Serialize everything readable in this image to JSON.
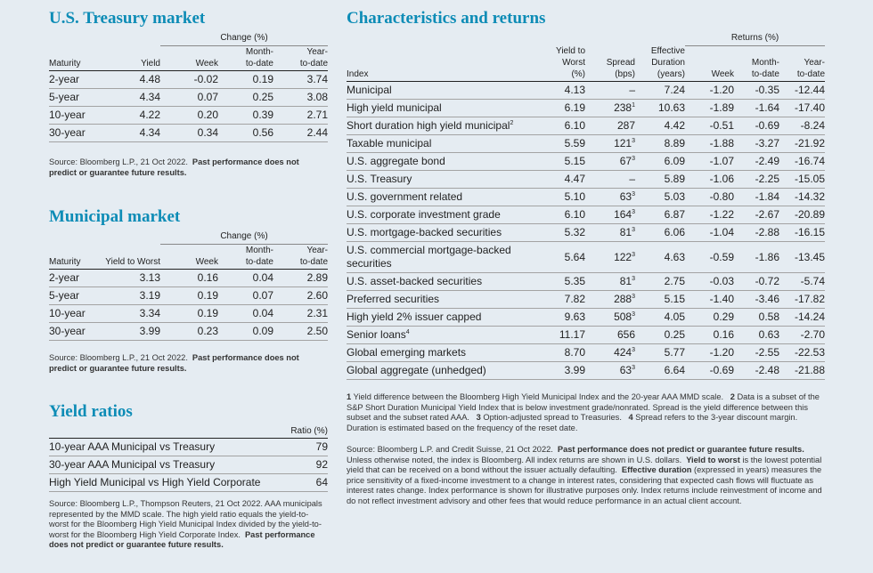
{
  "treasury": {
    "title": "U.S. Treasury market",
    "group_label": "Change (%)",
    "headers": [
      "Maturity",
      "Yield",
      "Week",
      "Month-\nto-date",
      "Year-\nto-date"
    ],
    "rows": [
      [
        "2-year",
        "4.48",
        "-0.02",
        "0.19",
        "3.74"
      ],
      [
        "5-year",
        "4.34",
        "0.07",
        "0.25",
        "3.08"
      ],
      [
        "10-year",
        "4.22",
        "0.20",
        "0.39",
        "2.71"
      ],
      [
        "30-year",
        "4.34",
        "0.34",
        "0.56",
        "2.44"
      ]
    ],
    "source": "Source: Bloomberg L.P., 21 Oct 2022.",
    "disclaimer": "Past performance does not predict or guarantee future results."
  },
  "municipal": {
    "title": "Municipal market",
    "group_label": "Change (%)",
    "headers": [
      "Maturity",
      "Yield to Worst",
      "Week",
      "Month-\nto-date",
      "Year-\nto-date"
    ],
    "rows": [
      [
        "2-year",
        "3.13",
        "0.16",
        "0.04",
        "2.89"
      ],
      [
        "5-year",
        "3.19",
        "0.19",
        "0.07",
        "2.60"
      ],
      [
        "10-year",
        "3.34",
        "0.19",
        "0.04",
        "2.31"
      ],
      [
        "30-year",
        "3.99",
        "0.23",
        "0.09",
        "2.50"
      ]
    ],
    "source": "Source: Bloomberg L.P., 21 Oct 2022.",
    "disclaimer": "Past performance does not predict or guarantee future results."
  },
  "yield_ratios": {
    "title": "Yield ratios",
    "ratio_header": "Ratio (%)",
    "rows": [
      [
        "10-year AAA Municipal vs Treasury",
        "79"
      ],
      [
        "30-year AAA Municipal vs Treasury",
        "92"
      ],
      [
        "High Yield Municipal vs High Yield Corporate",
        "64"
      ]
    ],
    "source": "Source: Bloomberg L.P., Thompson Reuters, 21 Oct 2022. AAA municipals represented by the MMD scale. The high yield ratio equals the yield-to-worst for the Bloomberg High Yield Municipal Index divided by the yield-to-worst for the Bloomberg High Yield Corporate Index.",
    "disclaimer": "Past performance does not predict or guarantee future results."
  },
  "characteristics": {
    "title": "Characteristics and returns",
    "returns_label": "Returns (%)",
    "headers": [
      "Index",
      "Yield to\nWorst\n(%)",
      "Spread\n(bps)",
      "Effective\nDuration\n(years)",
      "Week",
      "Month-\nto-date",
      "Year-\nto-date"
    ],
    "rows": [
      {
        "name": "Municipal",
        "sup": "",
        "ytw": "4.13",
        "spread": "–",
        "ssup": "",
        "dur": "7.24",
        "week": "-1.20",
        "mtd": "-0.35",
        "ytd": "-12.44"
      },
      {
        "name": "High yield municipal",
        "sup": "",
        "ytw": "6.19",
        "spread": "238",
        "ssup": "1",
        "dur": "10.63",
        "week": "-1.89",
        "mtd": "-1.64",
        "ytd": "-17.40"
      },
      {
        "name": "Short duration high yield municipal",
        "sup": "2",
        "ytw": "6.10",
        "spread": "287",
        "ssup": "",
        "dur": "4.42",
        "week": "-0.51",
        "mtd": "-0.69",
        "ytd": "-8.24"
      },
      {
        "name": "Taxable municipal",
        "sup": "",
        "ytw": "5.59",
        "spread": "121",
        "ssup": "3",
        "dur": "8.89",
        "week": "-1.88",
        "mtd": "-3.27",
        "ytd": "-21.92"
      },
      {
        "name": "U.S. aggregate bond",
        "sup": "",
        "ytw": "5.15",
        "spread": "67",
        "ssup": "3",
        "dur": "6.09",
        "week": "-1.07",
        "mtd": "-2.49",
        "ytd": "-16.74"
      },
      {
        "name": "U.S. Treasury",
        "sup": "",
        "ytw": "4.47",
        "spread": "–",
        "ssup": "",
        "dur": "5.89",
        "week": "-1.06",
        "mtd": "-2.25",
        "ytd": "-15.05"
      },
      {
        "name": "U.S. government related",
        "sup": "",
        "ytw": "5.10",
        "spread": "63",
        "ssup": "3",
        "dur": "5.03",
        "week": "-0.80",
        "mtd": "-1.84",
        "ytd": "-14.32"
      },
      {
        "name": "U.S. corporate investment grade",
        "sup": "",
        "ytw": "6.10",
        "spread": "164",
        "ssup": "3",
        "dur": "6.87",
        "week": "-1.22",
        "mtd": "-2.67",
        "ytd": "-20.89"
      },
      {
        "name": "U.S. mortgage-backed securities",
        "sup": "",
        "ytw": "5.32",
        "spread": "81",
        "ssup": "3",
        "dur": "6.06",
        "week": "-1.04",
        "mtd": "-2.88",
        "ytd": "-16.15"
      },
      {
        "name": "U.S. commercial mortgage-backed securities",
        "sup": "",
        "ytw": "5.64",
        "spread": "122",
        "ssup": "3",
        "dur": "4.63",
        "week": "-0.59",
        "mtd": "-1.86",
        "ytd": "-13.45",
        "wrap": true
      },
      {
        "name": "U.S. asset-backed securities",
        "sup": "",
        "ytw": "5.35",
        "spread": "81",
        "ssup": "3",
        "dur": "2.75",
        "week": "-0.03",
        "mtd": "-0.72",
        "ytd": "-5.74"
      },
      {
        "name": "Preferred securities",
        "sup": "",
        "ytw": "7.82",
        "spread": "288",
        "ssup": "3",
        "dur": "5.15",
        "week": "-1.40",
        "mtd": "-3.46",
        "ytd": "-17.82"
      },
      {
        "name": "High yield 2% issuer capped",
        "sup": "",
        "ytw": "9.63",
        "spread": "508",
        "ssup": "3",
        "dur": "4.05",
        "week": "0.29",
        "mtd": "0.58",
        "ytd": "-14.24"
      },
      {
        "name": "Senior loans",
        "sup": "4",
        "ytw": "11.17",
        "spread": "656",
        "ssup": "",
        "dur": "0.25",
        "week": "0.16",
        "mtd": "0.63",
        "ytd": "-2.70"
      },
      {
        "name": "Global emerging markets",
        "sup": "",
        "ytw": "8.70",
        "spread": "424",
        "ssup": "3",
        "dur": "5.77",
        "week": "-1.20",
        "mtd": "-2.55",
        "ytd": "-22.53"
      },
      {
        "name": "Global aggregate (unhedged)",
        "sup": "",
        "ytw": "3.99",
        "spread": "63",
        "ssup": "3",
        "dur": "6.64",
        "week": "-0.69",
        "mtd": "-2.48",
        "ytd": "-21.88"
      }
    ],
    "footnotes": [
      {
        "num": "1",
        "text": "Yield difference between the Bloomberg High Yield Municipal Index and the 20-year AAA MMD scale."
      },
      {
        "num": "2",
        "text": "Data is a subset of the S&P Short Duration Municipal Yield Index that is below investment grade/nonrated. Spread is the yield difference between this subset and the subset rated AAA."
      },
      {
        "num": "3",
        "text": "Option-adjusted spread to Treasuries."
      },
      {
        "num": "4",
        "text": "Spread refers to the 3-year discount margin. Duration is estimated based on the frequency of the reset date."
      }
    ],
    "source_a": "Source: Bloomberg L.P. and Credit Suisse, 21 Oct 2022.",
    "source_b": "Past performance does not predict or guarantee future results.",
    "source_c": "Unless otherwise noted, the index is Bloomberg. All index returns are shown in U.S. dollars.",
    "ytw_term": "Yield to worst",
    "ytw_def": "is the lowest potential yield that can be received on a bond without the issuer actually defaulting.",
    "ed_term": "Effective duration",
    "ed_def": "(expressed in years) measures the price sensitivity of a fixed-income investment to a change in interest rates, considering that expected cash flows will fluctuate as interest rates change. Index performance is shown for illustrative purposes only. Index returns include reinvestment of income and do not reflect investment advisory and other fees that would reduce performance in an actual client account."
  }
}
